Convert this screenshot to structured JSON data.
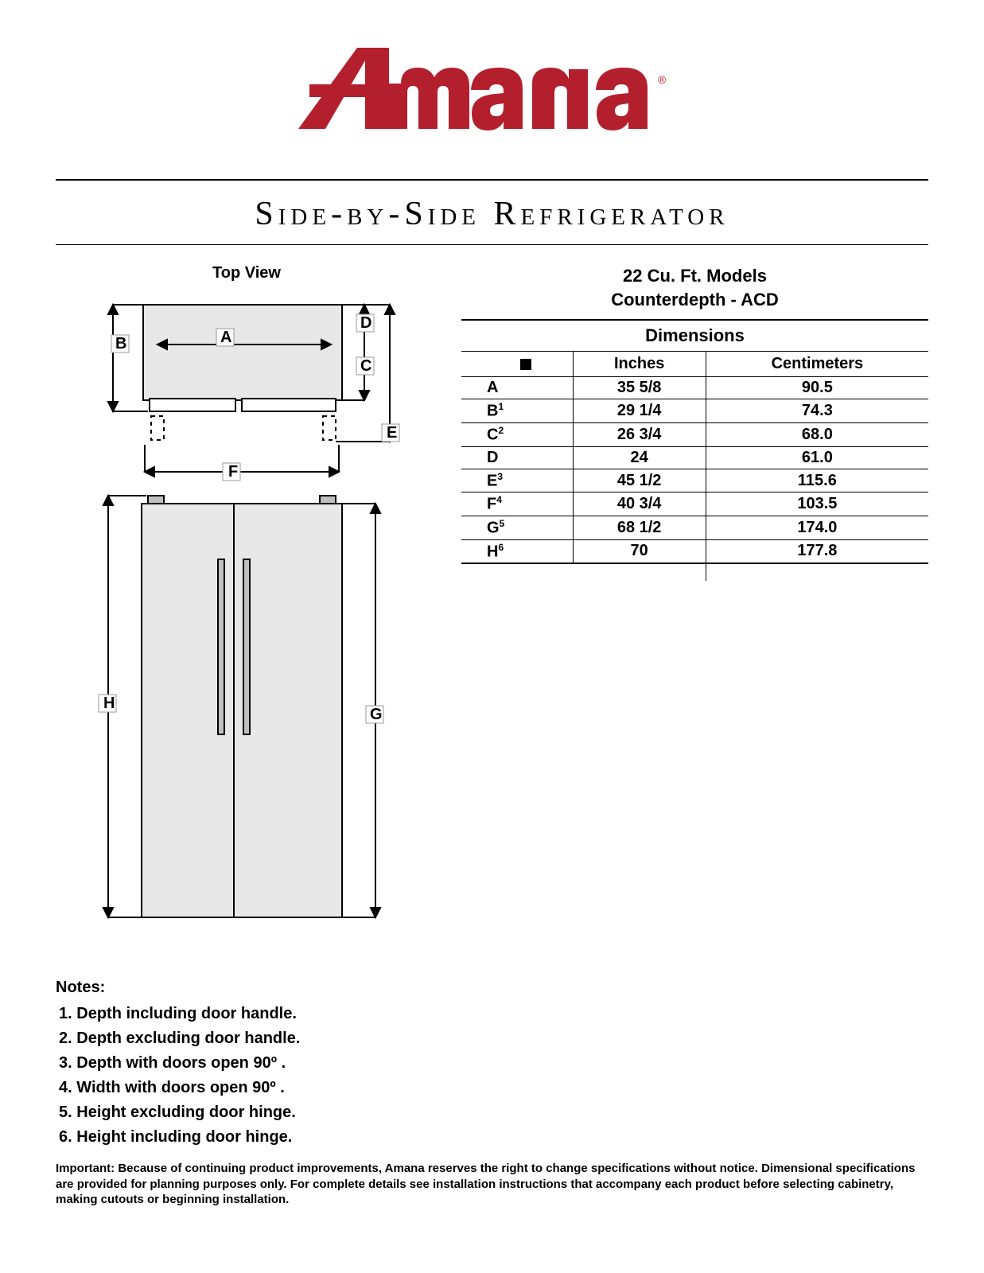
{
  "brand": {
    "name": "Amana",
    "color": "#b41f2e"
  },
  "title": "Side-by-Side Refrigerator",
  "diagram": {
    "top_label": "Top View"
  },
  "model": {
    "line1": "22 Cu. Ft. Models",
    "line2": "Counterdepth - ACD"
  },
  "table": {
    "section_title": "Dimensions",
    "col_inches": "Inches",
    "col_cm": "Centimeters",
    "rows": [
      {
        "label": "A",
        "sup": "",
        "inches": "35 5/8",
        "cm": "90.5"
      },
      {
        "label": "B",
        "sup": "1",
        "inches": "29 1/4",
        "cm": "74.3"
      },
      {
        "label": "C",
        "sup": "2",
        "inches": "26 3/4",
        "cm": "68.0"
      },
      {
        "label": "D",
        "sup": "",
        "inches": "24",
        "cm": "61.0"
      },
      {
        "label": "E",
        "sup": "3",
        "inches": "45 1/2",
        "cm": "115.6"
      },
      {
        "label": "F",
        "sup": "4",
        "inches": "40 3/4",
        "cm": "103.5"
      },
      {
        "label": "G",
        "sup": "5",
        "inches": "68 1/2",
        "cm": "174.0"
      },
      {
        "label": "H",
        "sup": "6",
        "inches": "70",
        "cm": "177.8"
      }
    ]
  },
  "notes": {
    "heading": "Notes:",
    "items": [
      "Depth including door handle.",
      "Depth excluding door handle.",
      "Depth with doors open 90º .",
      "Width with doors open 90º .",
      "Height excluding door hinge.",
      "Height including door hinge."
    ]
  },
  "disclaimer": "Important: Because of continuing product improvements, Amana reserves the right to change specifications without notice. Dimensional specifications are provided for planning purposes only. For complete details see installation instructions that accompany each product before selecting cabinetry, making cutouts or beginning installation."
}
